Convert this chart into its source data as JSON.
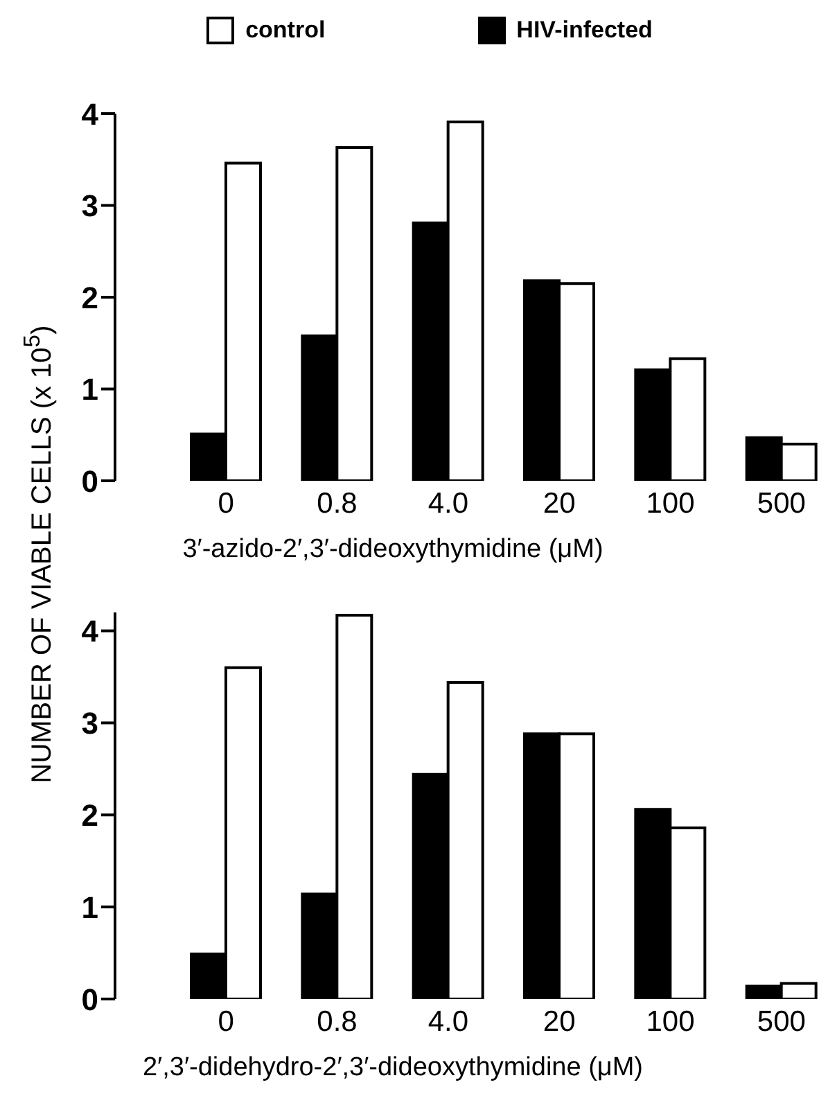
{
  "chart_data": [
    {
      "type": "bar",
      "ylabel": "NUMBER OF VIABLE CELLS (x 10$^{5}$)",
      "xlabel": "3′-azido-2′,3′-dideoxythymidine (μM)",
      "categories": [
        "0",
        "0.8",
        "4.0",
        "20",
        "100",
        "500"
      ],
      "series": [
        {
          "name": "HIV-infected",
          "color": "#000000",
          "values": [
            0.51,
            1.58,
            2.81,
            2.18,
            1.21,
            0.47
          ]
        },
        {
          "name": "control",
          "color": "#ffffff",
          "values": [
            3.46,
            3.63,
            3.91,
            2.15,
            1.33,
            0.4
          ]
        }
      ],
      "ylim": [
        0,
        4
      ],
      "yticks": [
        0,
        1,
        2,
        3,
        4
      ],
      "grid": false,
      "legend": "top"
    },
    {
      "type": "bar",
      "xlabel": "2′,3′-didehydro-2′,3′-dideoxythymidine (μM)",
      "categories": [
        "0",
        "0.8",
        "4.0",
        "20",
        "100",
        "500"
      ],
      "series": [
        {
          "color": "#000000",
          "values": [
            0.49,
            1.14,
            2.44,
            2.88,
            2.06,
            0.14
          ]
        },
        {
          "color": "#ffffff",
          "values": [
            3.6,
            4.17,
            3.44,
            2.88,
            1.86,
            0.17
          ]
        }
      ],
      "ylim": [
        0,
        4.2
      ],
      "yticks": [
        0,
        1,
        2,
        3,
        4
      ],
      "grid": false
    }
  ]
}
